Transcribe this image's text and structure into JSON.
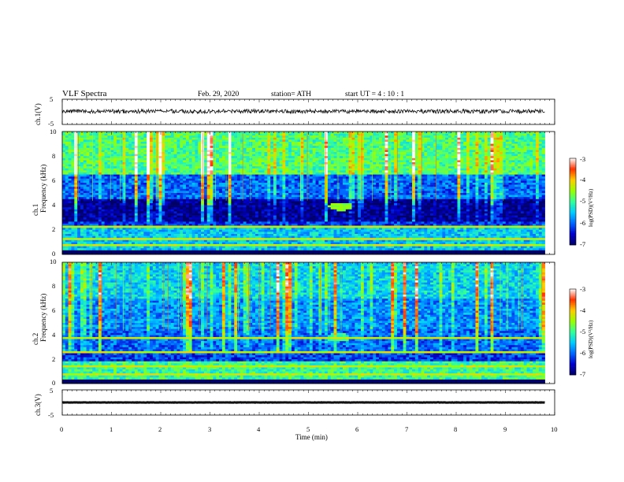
{
  "header": {
    "title": "VLF Spectra",
    "date": "Feb. 29, 2020",
    "station": "station= ATH",
    "start": "start UT = 4 : 10 : 1"
  },
  "colors": {
    "background": "#ffffff",
    "axis": "#000000",
    "waveform": "#111111",
    "colormap": [
      "#000066",
      "#0000cc",
      "#0066ff",
      "#00ccff",
      "#33ff99",
      "#99ff00",
      "#ffcc00",
      "#ff3300",
      "#ffffff"
    ]
  },
  "chart_data": [
    {
      "name": "ch1-waveform",
      "type": "line",
      "ylabel": "ch.1(V)",
      "y_ticks": [
        "5",
        "-5"
      ],
      "ylim": [
        -5,
        5
      ],
      "xlim": [
        0,
        10
      ],
      "x_extent_min": 9.8,
      "level": 0.2,
      "noise_amplitude": 0.8,
      "grid": false
    },
    {
      "name": "ch1-spectrogram",
      "type": "heatmap",
      "ylabel": "ch.1 Frequency (kHz)",
      "y_ticks": [
        "10",
        "8",
        "6",
        "4",
        "2",
        "0"
      ],
      "ylim": [
        0,
        10
      ],
      "xlim": [
        0,
        10
      ],
      "x_extent_min": 9.8,
      "colorbar": {
        "label": "log(PSD)(V²/Hz)",
        "ticks": [
          "-3",
          "-4",
          "-5",
          "-6",
          "-7"
        ],
        "range": [
          -7,
          -3
        ]
      },
      "band_levels": [
        {
          "freq_khz": [
            0,
            0.4
          ],
          "log_psd": -7
        },
        {
          "freq_khz": [
            0.4,
            2.2
          ],
          "log_psd": -5.5
        },
        {
          "freq_khz": [
            2.2,
            2.6
          ],
          "log_psd": -6.2
        },
        {
          "freq_khz": [
            2.6,
            4.5
          ],
          "log_psd": -6.8
        },
        {
          "freq_khz": [
            4.5,
            6.5
          ],
          "log_psd": -6.0
        },
        {
          "freq_khz": [
            6.5,
            10
          ],
          "log_psd": -4.9
        }
      ],
      "narrowband_lines_khz": [
        0.5,
        0.8,
        1.2,
        1.5,
        2.0,
        2.3
      ],
      "feature": {
        "label": "",
        "time_min": 5.65,
        "freq_khz": 3.9,
        "log_psd": -4.6
      }
    },
    {
      "name": "ch2-spectrogram",
      "type": "heatmap",
      "ylabel": "ch.2 Frequency (kHz)",
      "y_ticks": [
        "10",
        "8",
        "6",
        "4",
        "2",
        "0"
      ],
      "ylim": [
        0,
        10
      ],
      "xlim": [
        0,
        10
      ],
      "x_extent_min": 9.8,
      "colorbar": {
        "label": "log(PSD)(V²/Hz)",
        "ticks": [
          "-3",
          "-4",
          "-5",
          "-6",
          "-7"
        ],
        "range": [
          -7,
          -3
        ]
      },
      "band_levels": [
        {
          "freq_khz": [
            0,
            0.4
          ],
          "log_psd": -7
        },
        {
          "freq_khz": [
            0.4,
            1.8
          ],
          "log_psd": -5.0
        },
        {
          "freq_khz": [
            1.8,
            2.6
          ],
          "log_psd": -6.2
        },
        {
          "freq_khz": [
            2.6,
            4.5
          ],
          "log_psd": -6.0
        },
        {
          "freq_khz": [
            4.5,
            7.0
          ],
          "log_psd": -5.8
        },
        {
          "freq_khz": [
            7.0,
            10
          ],
          "log_psd": -5.4
        }
      ],
      "narrowband_lines_khz": [
        0.7,
        1.0,
        1.4,
        2.6,
        3.7
      ],
      "feature": {
        "label": "",
        "time_min": 5.6,
        "freq_khz": 3.8,
        "log_psd": -5.0
      }
    },
    {
      "name": "ch3-waveform",
      "type": "line",
      "ylabel": "ch.3(V)",
      "y_ticks": [
        "5",
        "-5"
      ],
      "ylim": [
        -5,
        5
      ],
      "xlim": [
        0,
        10
      ],
      "x_extent_min": 9.8,
      "level": 0.0,
      "noise_amplitude": 0.05,
      "grid": false
    }
  ],
  "x_axis": {
    "label": "Time (min)",
    "ticks": [
      "0",
      "1",
      "2",
      "3",
      "4",
      "5",
      "6",
      "7",
      "8",
      "9",
      "10"
    ],
    "xlim": [
      0,
      10
    ]
  }
}
